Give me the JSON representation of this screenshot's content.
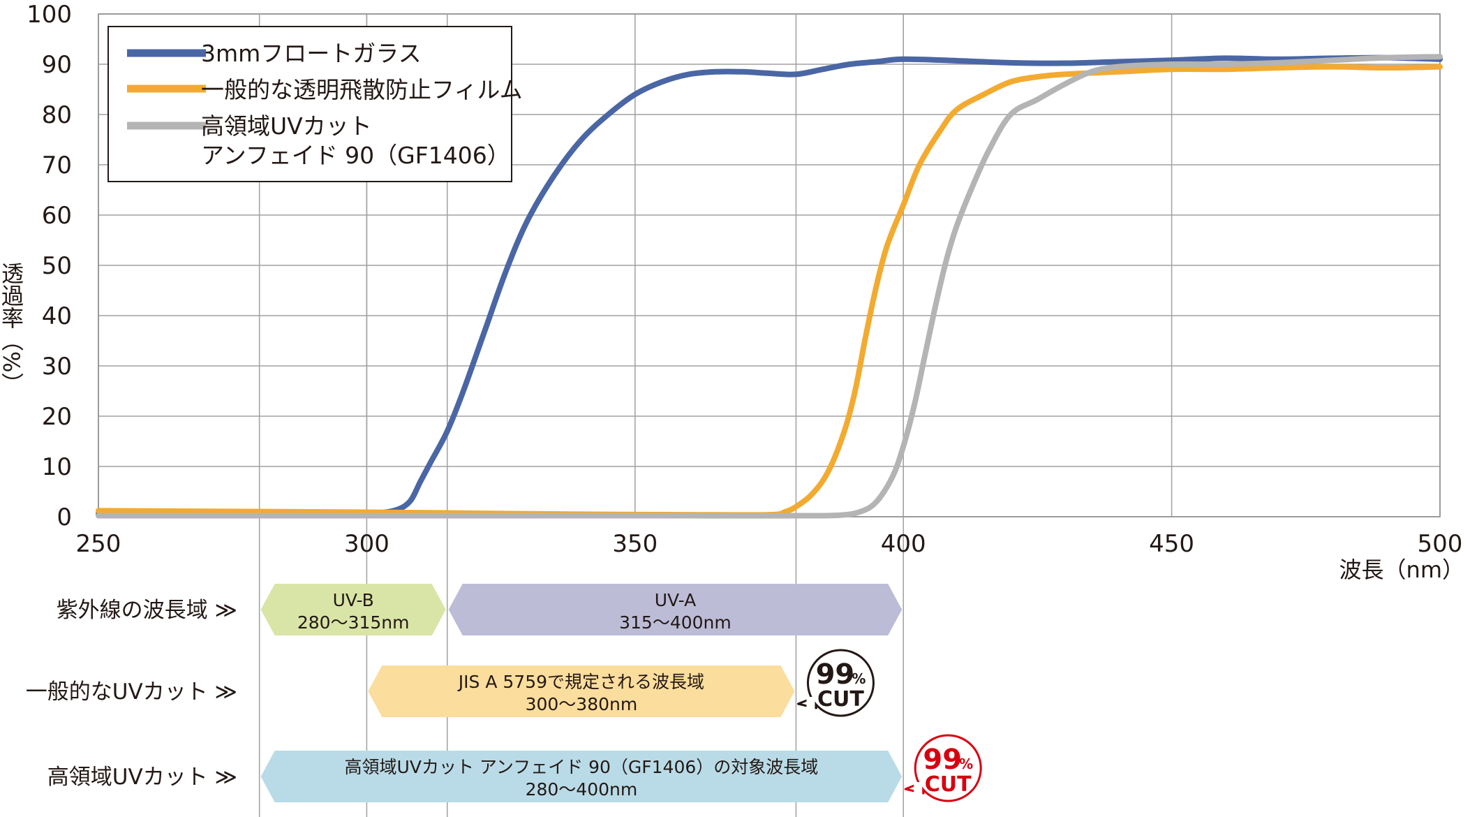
{
  "chart_data": {
    "type": "line",
    "title": "",
    "xlabel": "波長（nm）",
    "ylabel": "透過率（%）",
    "xlim": [
      250,
      500
    ],
    "ylim": [
      0,
      100
    ],
    "x_ticks": [
      250,
      300,
      350,
      400,
      450,
      500
    ],
    "y_ticks": [
      0,
      10,
      20,
      30,
      40,
      50,
      60,
      70,
      80,
      90,
      100
    ],
    "grid": true,
    "legend_position": "top-left",
    "series": [
      {
        "name": "3mmフロートガラス",
        "color": "#4a66a4",
        "points": [
          [
            250,
            0.6
          ],
          [
            290,
            0.6
          ],
          [
            300,
            0.7
          ],
          [
            305,
            1.2
          ],
          [
            308,
            3
          ],
          [
            310,
            7
          ],
          [
            312,
            11
          ],
          [
            315,
            17
          ],
          [
            318,
            25
          ],
          [
            322,
            37
          ],
          [
            326,
            49
          ],
          [
            330,
            59
          ],
          [
            335,
            68
          ],
          [
            340,
            75
          ],
          [
            345,
            80
          ],
          [
            350,
            84
          ],
          [
            355,
            86.5
          ],
          [
            360,
            88
          ],
          [
            365,
            88.5
          ],
          [
            370,
            88.5
          ],
          [
            375,
            88.2
          ],
          [
            380,
            88
          ],
          [
            385,
            89
          ],
          [
            390,
            90
          ],
          [
            395,
            90.5
          ],
          [
            400,
            91
          ],
          [
            410,
            90.7
          ],
          [
            420,
            90.3
          ],
          [
            430,
            90.2
          ],
          [
            440,
            90.5
          ],
          [
            450,
            90.8
          ],
          [
            460,
            91.2
          ],
          [
            470,
            91
          ],
          [
            480,
            91.2
          ],
          [
            490,
            91.3
          ],
          [
            500,
            91
          ]
        ]
      },
      {
        "name": "一般的な透明飛散防止フィルム",
        "color": "#f2ab30",
        "points": [
          [
            250,
            1.2
          ],
          [
            300,
            0.9
          ],
          [
            320,
            0.7
          ],
          [
            340,
            0.5
          ],
          [
            360,
            0.4
          ],
          [
            375,
            0.4
          ],
          [
            378,
            1
          ],
          [
            380,
            2
          ],
          [
            383,
            4.5
          ],
          [
            386,
            9
          ],
          [
            389,
            17
          ],
          [
            391,
            25
          ],
          [
            393,
            36
          ],
          [
            395,
            46
          ],
          [
            397,
            54
          ],
          [
            400,
            62
          ],
          [
            403,
            70
          ],
          [
            407,
            77
          ],
          [
            410,
            81
          ],
          [
            415,
            84
          ],
          [
            420,
            86.5
          ],
          [
            425,
            87.5
          ],
          [
            430,
            88
          ],
          [
            440,
            88.5
          ],
          [
            450,
            89
          ],
          [
            460,
            89
          ],
          [
            470,
            89.3
          ],
          [
            480,
            89.5
          ],
          [
            490,
            89.3
          ],
          [
            500,
            89.5
          ]
        ]
      },
      {
        "name": "高領域UVカット\nアンフェイド 90（GF1406）",
        "color": "#b4b4b4",
        "points": [
          [
            250,
            0.2
          ],
          [
            360,
            0.2
          ],
          [
            380,
            0.2
          ],
          [
            388,
            0.3
          ],
          [
            392,
            1
          ],
          [
            395,
            3
          ],
          [
            398,
            8
          ],
          [
            400,
            14
          ],
          [
            402,
            22
          ],
          [
            404,
            32
          ],
          [
            406,
            42
          ],
          [
            408,
            51
          ],
          [
            410,
            58
          ],
          [
            413,
            66
          ],
          [
            416,
            73
          ],
          [
            420,
            80
          ],
          [
            425,
            83
          ],
          [
            430,
            86
          ],
          [
            435,
            88.5
          ],
          [
            440,
            89.5
          ],
          [
            450,
            90
          ],
          [
            460,
            90
          ],
          [
            470,
            90.3
          ],
          [
            480,
            90.8
          ],
          [
            490,
            91.3
          ],
          [
            500,
            91.5
          ]
        ]
      }
    ]
  },
  "band_rows": [
    {
      "label": "紫外線の波長域 ≫",
      "bands": [
        {
          "name": "UV-B",
          "range": "280〜315nm",
          "start": 280,
          "end": 315,
          "color": "#d9e5a6"
        },
        {
          "name": "UV-A",
          "range": "315〜400nm",
          "start": 315,
          "end": 400,
          "color": "#bcbcd7"
        }
      ]
    },
    {
      "label": "一般的なUVカット ≫",
      "bands": [
        {
          "name": "JIS A 5759で規定される波長域",
          "range": "300〜380nm",
          "start": 300,
          "end": 380,
          "color": "#fbdd9d"
        }
      ],
      "badge": {
        "big": "99",
        "small": "%",
        "cut": "CUT",
        "color": "#231815"
      }
    },
    {
      "label": "高領域UVカット ≫",
      "bands": [
        {
          "name": "高領域UVカット アンフェイド 90（GF1406）の対象波長域",
          "range": "280〜400nm",
          "start": 280,
          "end": 400,
          "color": "#b9dbe7"
        }
      ],
      "badge": {
        "big": "99",
        "small": "%",
        "cut": "CUT",
        "color": "#d7000f"
      }
    }
  ],
  "vertical_guides": [
    280,
    300,
    315,
    380,
    400
  ]
}
